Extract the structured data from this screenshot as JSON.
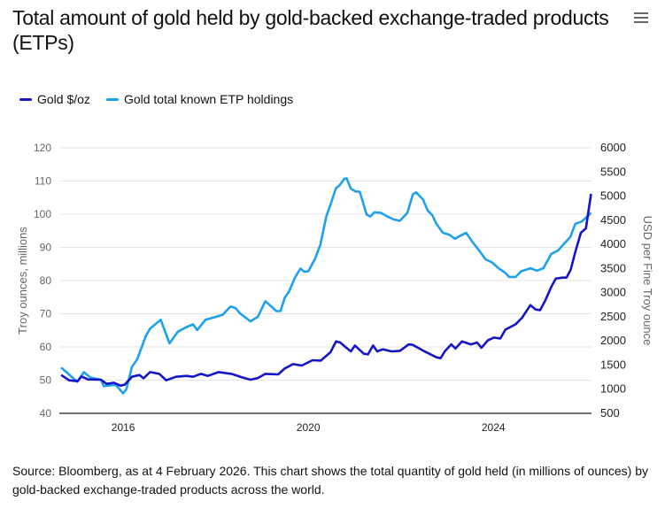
{
  "header": {
    "title": "Total amount of gold held by gold-backed exchange-traded products (ETPs)",
    "menu_icon": "hamburger-menu-icon"
  },
  "source": "Source: Bloomberg, as at 4 February 2026. This chart shows the total quantity of gold held (in millions of ounces) by gold-backed exchange-traded products across the world.",
  "chart_data": {
    "type": "line",
    "title": "Total amount of gold held by gold-backed exchange-traded products (ETPs)",
    "legend_placement": "top-left",
    "grid": true,
    "x_ticks": [
      2016,
      2020,
      2024
    ],
    "xlim": [
      2014.62,
      2026.12
    ],
    "y_left": {
      "label": "Troy ounces, millions",
      "lim": [
        40,
        120
      ],
      "ticks": [
        40,
        50,
        60,
        70,
        80,
        90,
        100,
        110,
        120
      ]
    },
    "y_right": {
      "label": "USD per Fine Troy ounce",
      "lim": [
        500,
        6000
      ],
      "ticks": [
        500,
        1000,
        1500,
        2000,
        2500,
        3000,
        3500,
        4000,
        4500,
        5000,
        5500,
        6000
      ]
    },
    "series": [
      {
        "name": "Gold $/oz",
        "axis": "right",
        "color": "#1414c8",
        "x": [
          2014.66,
          2014.83,
          2015.01,
          2015.1,
          2015.24,
          2015.52,
          2015.64,
          2015.8,
          2015.94,
          2016.03,
          2016.19,
          2016.35,
          2016.44,
          2016.58,
          2016.78,
          2016.93,
          2017.14,
          2017.37,
          2017.51,
          2017.68,
          2017.83,
          2018.06,
          2018.34,
          2018.57,
          2018.75,
          2018.91,
          2019.07,
          2019.35,
          2019.49,
          2019.67,
          2019.86,
          2020.09,
          2020.27,
          2020.48,
          2020.6,
          2020.69,
          2020.81,
          2020.92,
          2021.01,
          2021.2,
          2021.29,
          2021.4,
          2021.49,
          2021.61,
          2021.8,
          2021.98,
          2022.17,
          2022.26,
          2022.49,
          2022.77,
          2022.86,
          2022.95,
          2023.09,
          2023.18,
          2023.32,
          2023.51,
          2023.65,
          2023.74,
          2023.88,
          2024.01,
          2024.15,
          2024.26,
          2024.48,
          2024.62,
          2024.8,
          2024.91,
          2025.01,
          2025.12,
          2025.26,
          2025.35,
          2025.49,
          2025.58,
          2025.67,
          2025.77,
          2025.89,
          2026.0,
          2026.11
        ],
        "y": [
          1294,
          1184,
          1165,
          1263,
          1202,
          1196,
          1110,
          1135,
          1073,
          1092,
          1257,
          1294,
          1226,
          1355,
          1318,
          1184,
          1257,
          1275,
          1257,
          1318,
          1275,
          1355,
          1318,
          1245,
          1196,
          1232,
          1318,
          1306,
          1428,
          1520,
          1490,
          1600,
          1593,
          1765,
          1990,
          1966,
          1868,
          1783,
          1905,
          1734,
          1721,
          1905,
          1783,
          1825,
          1783,
          1795,
          1929,
          1917,
          1795,
          1660,
          1642,
          1783,
          1929,
          1844,
          1990,
          1929,
          1966,
          1856,
          2010,
          2070,
          2050,
          2235,
          2345,
          2480,
          2742,
          2650,
          2638,
          2834,
          3140,
          3292,
          3311,
          3311,
          3476,
          3843,
          4240,
          4331,
          5046
        ]
      },
      {
        "name": "Gold total known ETP holdings",
        "axis": "left",
        "color": "#1ea0f0",
        "x": [
          2014.66,
          2015.01,
          2015.15,
          2015.29,
          2015.52,
          2015.58,
          2015.84,
          2016.0,
          2016.07,
          2016.19,
          2016.3,
          2016.49,
          2016.58,
          2016.81,
          2017.0,
          2017.18,
          2017.37,
          2017.51,
          2017.6,
          2017.78,
          2018.01,
          2018.15,
          2018.32,
          2018.43,
          2018.52,
          2018.75,
          2018.91,
          2019.07,
          2019.17,
          2019.31,
          2019.4,
          2019.49,
          2019.58,
          2019.72,
          2019.83,
          2019.91,
          2020.0,
          2020.14,
          2020.26,
          2020.39,
          2020.49,
          2020.6,
          2020.67,
          2020.78,
          2020.83,
          2020.92,
          2021.03,
          2021.11,
          2021.18,
          2021.26,
          2021.34,
          2021.43,
          2021.57,
          2021.71,
          2021.85,
          2021.98,
          2022.14,
          2022.26,
          2022.33,
          2022.48,
          2022.58,
          2022.68,
          2022.77,
          2022.91,
          2023.05,
          2023.17,
          2023.28,
          2023.41,
          2023.55,
          2023.69,
          2023.83,
          2023.97,
          2024.11,
          2024.25,
          2024.34,
          2024.48,
          2024.6,
          2024.8,
          2024.94,
          2025.08,
          2025.25,
          2025.4,
          2025.52,
          2025.66,
          2025.77,
          2025.91,
          2026.11
        ],
        "y": [
          53.8,
          49.5,
          52.4,
          50.8,
          50.1,
          48.2,
          48.6,
          46.0,
          47.3,
          54.0,
          56.2,
          63.3,
          65.5,
          68.2,
          61.1,
          64.6,
          66.0,
          66.8,
          65.1,
          68.2,
          69.1,
          69.7,
          72.2,
          71.7,
          70.2,
          67.7,
          69.1,
          73.8,
          72.6,
          70.8,
          70.8,
          74.8,
          76.6,
          81.1,
          83.6,
          82.7,
          82.8,
          86.4,
          90.8,
          99.3,
          103.3,
          107.9,
          108.6,
          110.7,
          110.8,
          107.7,
          106.8,
          106.8,
          103.7,
          99.9,
          99.3,
          100.6,
          100.4,
          99.3,
          98.4,
          98.0,
          100.4,
          106.0,
          106.6,
          104.4,
          101.1,
          99.7,
          97.1,
          94.4,
          93.8,
          92.6,
          93.5,
          94.4,
          91.6,
          89.1,
          86.4,
          85.5,
          83.7,
          82.4,
          81.1,
          81.1,
          82.8,
          83.7,
          83.0,
          83.7,
          88.0,
          89.1,
          91.0,
          93.1,
          97.1,
          97.8,
          100.4
        ]
      }
    ]
  }
}
